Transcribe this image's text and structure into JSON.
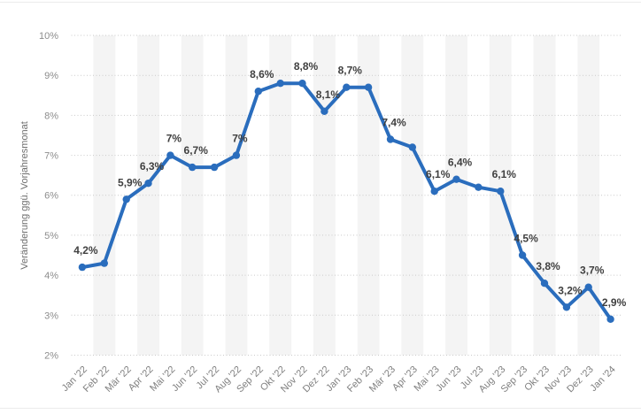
{
  "chart_data": {
    "type": "line",
    "title": "",
    "xlabel": "",
    "ylabel": "Veränderung ggü. Vorjahresmonat",
    "categories": [
      "Jan '22",
      "Feb '22",
      "Mär '22",
      "Apr '22",
      "Mai '22",
      "Jun '22",
      "Jul '22",
      "Aug '22",
      "Sep '22",
      "Okt '22",
      "Nov '22",
      "Dez '22",
      "Jan '23",
      "Feb '23",
      "Mär '23",
      "Apr '23",
      "Mai '23",
      "Jun '23",
      "Jul '23",
      "Aug '23",
      "Sep '23",
      "Okt '23",
      "Nov '23",
      "Dez '23",
      "Jan '24"
    ],
    "values": [
      4.2,
      4.3,
      5.9,
      6.3,
      7.0,
      6.7,
      6.7,
      7.0,
      8.6,
      8.8,
      8.8,
      8.1,
      8.7,
      8.7,
      7.4,
      7.2,
      6.1,
      6.4,
      6.2,
      6.1,
      4.5,
      3.8,
      3.2,
      3.7,
      2.9
    ],
    "point_labels": [
      "4,2%",
      "",
      "5,9%",
      "6,3%",
      "7%",
      "6,7%",
      "",
      "7%",
      "8,6%",
      "",
      "8,8%",
      "8,1%",
      "8,7%",
      "",
      "7,4%",
      "",
      "6,1%",
      "6,4%",
      "",
      "6,1%",
      "4,5%",
      "3,8%",
      "3,2%",
      "3,7%",
      "2,9%"
    ],
    "ylim": [
      2,
      10
    ],
    "ytick_labels": [
      "2%",
      "3%",
      "4%",
      "5%",
      "6%",
      "7%",
      "8%",
      "9%",
      "10%"
    ],
    "grid": "horizontal-dotted",
    "legend": "none",
    "x_tick_rotation_deg": -45,
    "colors": {
      "line": "#2a6dbd",
      "marker": "#2a6dbd",
      "band": "#f4f4f4",
      "grid": "#c9c9c9",
      "tick_text": "#8c8c8c",
      "x_tick_text": "#7f7f7f",
      "axis_title": "#6e6e6e",
      "point_label": "#404040",
      "background": "#ffffff"
    }
  }
}
